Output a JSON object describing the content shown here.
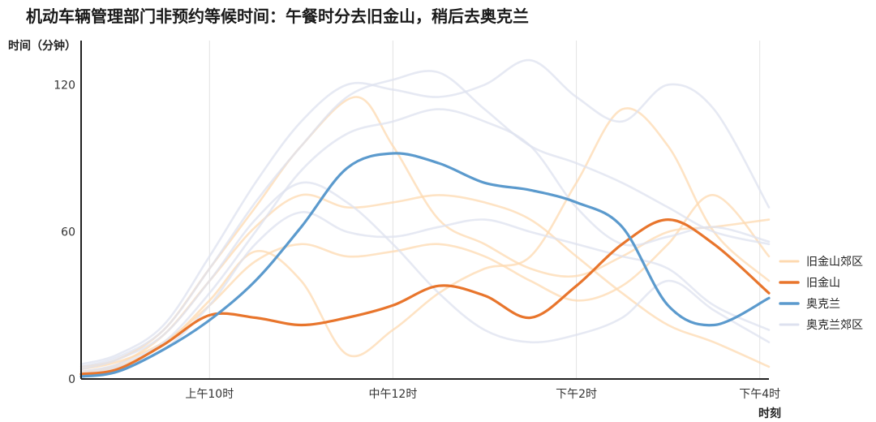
{
  "chart_data": {
    "type": "line",
    "title": "机动车辆管理部门非预约等候时间：午餐时分去旧金山，稍后去奥克兰",
    "ylabel": "时间（分钟）",
    "xlabel": "时刻",
    "x_ticks": [
      "上午10时",
      "中午12时",
      "下午2时",
      "下午4时"
    ],
    "x_tick_hours": [
      10,
      12,
      14,
      16
    ],
    "xlim": [
      8.6,
      16.1
    ],
    "y_ticks": [
      "0",
      "60",
      "120"
    ],
    "y_tick_values": [
      0,
      60,
      120
    ],
    "ylim": [
      0,
      138
    ],
    "grid": "vertical",
    "legend_position": "right",
    "series": [
      {
        "name": "旧金山郊区",
        "color": "#fdd9b0",
        "style": "faint",
        "lines": [
          [
            [
              8.6,
              5
            ],
            [
              9.0,
              8
            ],
            [
              9.5,
              20
            ],
            [
              10.0,
              45
            ],
            [
              10.5,
              70
            ],
            [
              11.0,
              95
            ],
            [
              11.6,
              115
            ],
            [
              12.0,
              95
            ],
            [
              12.5,
              65
            ],
            [
              13.0,
              55
            ],
            [
              13.5,
              45
            ],
            [
              14.0,
              42
            ],
            [
              14.5,
              50
            ],
            [
              15.0,
              60
            ],
            [
              15.5,
              62
            ],
            [
              16.1,
              65
            ]
          ],
          [
            [
              8.6,
              3
            ],
            [
              9.0,
              6
            ],
            [
              9.5,
              18
            ],
            [
              10.0,
              40
            ],
            [
              10.5,
              62
            ],
            [
              11.0,
              75
            ],
            [
              11.5,
              70
            ],
            [
              12.0,
              72
            ],
            [
              12.5,
              75
            ],
            [
              13.0,
              72
            ],
            [
              13.5,
              65
            ],
            [
              14.0,
              50
            ],
            [
              14.5,
              35
            ],
            [
              15.0,
              22
            ],
            [
              15.5,
              15
            ],
            [
              16.1,
              5
            ]
          ],
          [
            [
              8.6,
              4
            ],
            [
              9.0,
              7
            ],
            [
              9.5,
              15
            ],
            [
              10.0,
              30
            ],
            [
              10.5,
              48
            ],
            [
              11.0,
              55
            ],
            [
              11.5,
              50
            ],
            [
              12.0,
              52
            ],
            [
              12.5,
              55
            ],
            [
              13.0,
              50
            ],
            [
              13.5,
              40
            ],
            [
              14.0,
              32
            ],
            [
              14.5,
              38
            ],
            [
              15.0,
              55
            ],
            [
              15.5,
              75
            ],
            [
              16.1,
              50
            ]
          ],
          [
            [
              8.6,
              2
            ],
            [
              9.0,
              5
            ],
            [
              9.5,
              14
            ],
            [
              10.0,
              32
            ],
            [
              10.5,
              52
            ],
            [
              11.0,
              40
            ],
            [
              11.5,
              10
            ],
            [
              12.0,
              20
            ],
            [
              12.5,
              35
            ],
            [
              13.0,
              45
            ],
            [
              13.5,
              50
            ],
            [
              14.0,
              80
            ],
            [
              14.5,
              110
            ],
            [
              15.0,
              95
            ],
            [
              15.5,
              60
            ],
            [
              16.1,
              40
            ]
          ]
        ]
      },
      {
        "name": "旧金山",
        "color": "#e8752c",
        "style": "bold",
        "lines": [
          [
            [
              8.6,
              2
            ],
            [
              9.0,
              4
            ],
            [
              9.5,
              14
            ],
            [
              10.0,
              26
            ],
            [
              10.5,
              25
            ],
            [
              11.0,
              22
            ],
            [
              11.5,
              25
            ],
            [
              12.0,
              30
            ],
            [
              12.5,
              38
            ],
            [
              13.0,
              34
            ],
            [
              13.5,
              25
            ],
            [
              14.0,
              38
            ],
            [
              14.5,
              55
            ],
            [
              15.0,
              65
            ],
            [
              15.5,
              55
            ],
            [
              16.1,
              35
            ]
          ]
        ]
      },
      {
        "name": "奥克兰",
        "color": "#5b9acd",
        "style": "bold",
        "lines": [
          [
            [
              8.6,
              1
            ],
            [
              9.0,
              3
            ],
            [
              9.5,
              12
            ],
            [
              10.0,
              24
            ],
            [
              10.5,
              40
            ],
            [
              11.0,
              62
            ],
            [
              11.5,
              86
            ],
            [
              12.0,
              92
            ],
            [
              12.5,
              88
            ],
            [
              13.0,
              80
            ],
            [
              13.5,
              77
            ],
            [
              14.0,
              72
            ],
            [
              14.5,
              62
            ],
            [
              15.0,
              30
            ],
            [
              15.5,
              22
            ],
            [
              16.1,
              33
            ]
          ]
        ]
      },
      {
        "name": "奥克兰郊区",
        "color": "#dde1ef",
        "style": "faint",
        "lines": [
          [
            [
              8.6,
              6
            ],
            [
              9.0,
              10
            ],
            [
              9.5,
              22
            ],
            [
              10.0,
              50
            ],
            [
              10.5,
              80
            ],
            [
              11.0,
              105
            ],
            [
              11.5,
              120
            ],
            [
              12.0,
              118
            ],
            [
              12.5,
              115
            ],
            [
              13.0,
              120
            ],
            [
              13.5,
              130
            ],
            [
              14.0,
              115
            ],
            [
              14.5,
              105
            ],
            [
              15.0,
              120
            ],
            [
              15.5,
              110
            ],
            [
              16.1,
              70
            ]
          ],
          [
            [
              8.6,
              5
            ],
            [
              9.0,
              9
            ],
            [
              9.5,
              20
            ],
            [
              10.0,
              45
            ],
            [
              10.5,
              72
            ],
            [
              11.0,
              95
            ],
            [
              11.5,
              115
            ],
            [
              12.0,
              122
            ],
            [
              12.5,
              125
            ],
            [
              13.0,
              110
            ],
            [
              13.5,
              95
            ],
            [
              14.0,
              88
            ],
            [
              14.5,
              80
            ],
            [
              15.0,
              70
            ],
            [
              15.5,
              60
            ],
            [
              16.1,
              55
            ]
          ],
          [
            [
              8.6,
              4
            ],
            [
              9.0,
              8
            ],
            [
              9.5,
              18
            ],
            [
              10.0,
              40
            ],
            [
              10.5,
              65
            ],
            [
              11.0,
              80
            ],
            [
              11.5,
              72
            ],
            [
              12.0,
              55
            ],
            [
              12.5,
              35
            ],
            [
              13.0,
              20
            ],
            [
              13.5,
              15
            ],
            [
              14.0,
              18
            ],
            [
              14.5,
              25
            ],
            [
              15.0,
              40
            ],
            [
              15.5,
              28
            ],
            [
              16.1,
              15
            ]
          ],
          [
            [
              8.6,
              3
            ],
            [
              9.0,
              6
            ],
            [
              9.5,
              15
            ],
            [
              10.0,
              35
            ],
            [
              10.5,
              60
            ],
            [
              11.0,
              85
            ],
            [
              11.5,
              100
            ],
            [
              12.0,
              105
            ],
            [
              12.5,
              110
            ],
            [
              13.0,
              105
            ],
            [
              13.5,
              95
            ],
            [
              14.0,
              70
            ],
            [
              14.5,
              55
            ],
            [
              15.0,
              58
            ],
            [
              15.5,
              62
            ],
            [
              16.1,
              56
            ]
          ],
          [
            [
              8.6,
              2
            ],
            [
              9.0,
              5
            ],
            [
              9.5,
              12
            ],
            [
              10.0,
              30
            ],
            [
              10.5,
              55
            ],
            [
              11.0,
              68
            ],
            [
              11.5,
              60
            ],
            [
              12.0,
              58
            ],
            [
              12.5,
              62
            ],
            [
              13.0,
              65
            ],
            [
              13.5,
              60
            ],
            [
              14.0,
              55
            ],
            [
              14.5,
              50
            ],
            [
              15.0,
              45
            ],
            [
              15.5,
              30
            ],
            [
              16.1,
              20
            ]
          ]
        ]
      }
    ]
  }
}
